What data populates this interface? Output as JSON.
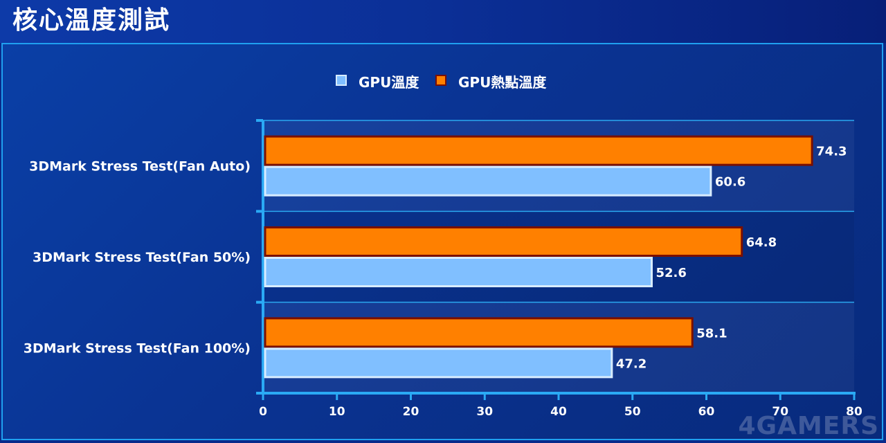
{
  "header": {
    "title": "核心溫度測試"
  },
  "watermark": "4GAMERS",
  "chart_data": {
    "type": "bar",
    "orientation": "horizontal",
    "title": "",
    "xlabel": "",
    "ylabel": "",
    "categories": [
      "3DMark Stress Test(Fan Auto)",
      "3DMark Stress Test(Fan 50%)",
      "3DMark Stress Test(Fan 100%)"
    ],
    "series": [
      {
        "name": "GPU熱點溫度",
        "color": "#ff8000",
        "values": [
          74.3,
          64.8,
          58.1
        ]
      },
      {
        "name": "GPU溫度",
        "color": "#80bfff",
        "values": [
          60.6,
          52.6,
          47.2
        ]
      }
    ],
    "legend_order": [
      "GPU溫度",
      "GPU熱點溫度"
    ],
    "legend_position": "top-center",
    "xlim": [
      0,
      80
    ],
    "xticks": [
      0,
      10,
      20,
      30,
      40,
      50,
      60,
      70,
      80
    ],
    "grid": false,
    "data_labels": true
  }
}
